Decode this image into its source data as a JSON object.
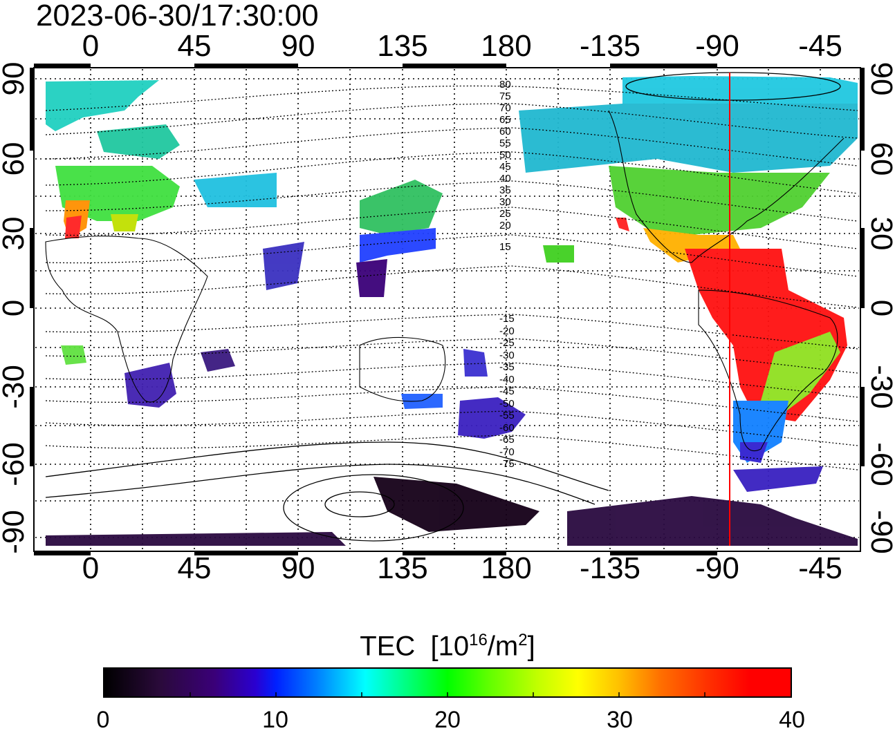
{
  "title": "2023-06-30/17:30:00",
  "lon_ticks": [
    "0",
    "45",
    "90",
    "135",
    "180",
    "-135",
    "-90",
    "-45"
  ],
  "lat_ticks": [
    "90",
    "60",
    "30",
    "0",
    "-30",
    "-60",
    "-90"
  ],
  "contour_labels_north": [
    "80",
    "75",
    "70",
    "65",
    "60",
    "55",
    "50",
    "45",
    "40",
    "35",
    "30",
    "25",
    "20",
    "15"
  ],
  "contour_labels_south": [
    "-15",
    "-20",
    "-25",
    "-30",
    "-35",
    "-40",
    "-45",
    "-50",
    "-55",
    "-60",
    "-65",
    "-70",
    "-75"
  ],
  "colorbar": {
    "title": "TEC",
    "unit_base": "10",
    "unit_exp": "16",
    "unit_rest": "/m",
    "unit_exp2": "2",
    "ticks": [
      "0",
      "10",
      "20",
      "30",
      "40"
    ],
    "range": [
      0,
      40
    ]
  },
  "colors": {
    "accent_line": "#ff0000",
    "frame": "#000000"
  }
}
